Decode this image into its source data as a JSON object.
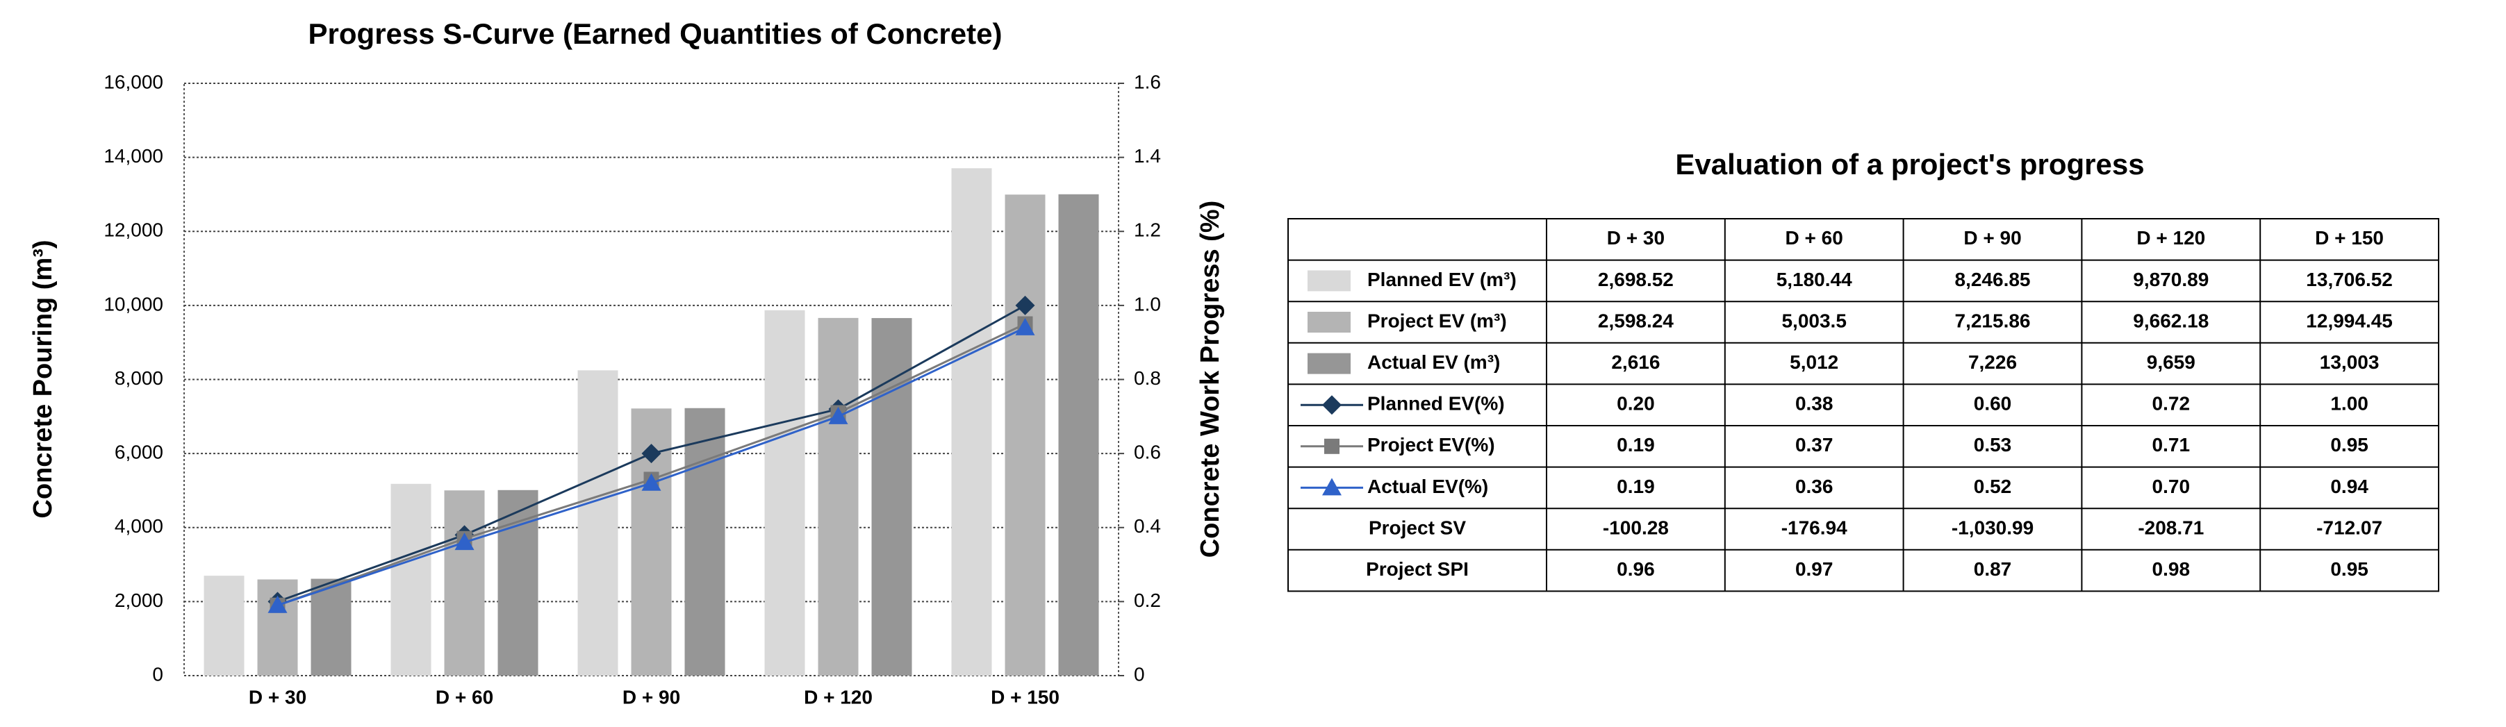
{
  "chart_data": {
    "type": "bar_line",
    "title": "Progress S-Curve (Earned Quantities of Concrete)",
    "y_label": "Concrete Pouring (m³)",
    "y2_label": "Concrete Work Progress  (%)",
    "categories": [
      "D + 30",
      "D + 60",
      "D + 90",
      "D + 120",
      "D + 150"
    ],
    "ylim": [
      0,
      16000
    ],
    "yticks": [
      0,
      {
        "value": 2000,
        "label": "2,000"
      },
      {
        "value": 4000,
        "label": "4,000"
      },
      {
        "value": 6000,
        "label": "6,000"
      },
      {
        "value": 8000,
        "label": "8,000"
      },
      {
        "value": 10000,
        "label": "10,000"
      },
      {
        "value": 12000,
        "label": "12,000"
      },
      {
        "value": 14000,
        "label": "14,000"
      },
      {
        "value": 16000,
        "label": "16,000"
      }
    ],
    "y2lim": [
      0,
      1.6
    ],
    "y2ticks": [
      0,
      0.2,
      0.4,
      0.6,
      0.8,
      {
        "value": 1,
        "label": "1.0"
      },
      1.2,
      1.4,
      1.6
    ],
    "grid": true,
    "series": [
      {
        "name": "Planned EV (m³)",
        "type": "bar",
        "color": "#d9d9d9",
        "values": [
          2698.52,
          5180.44,
          8246.85,
          9870.89,
          13706.52
        ]
      },
      {
        "name": "Project EV (m³)",
        "type": "bar",
        "color": "#b4b4b4",
        "values": [
          2598.24,
          5003.5,
          7215.86,
          9662.18,
          12994.45
        ]
      },
      {
        "name": "Actual EV (m³)",
        "type": "bar",
        "color": "#969696",
        "values": [
          2616,
          5012,
          7226,
          9659,
          13003
        ]
      },
      {
        "name": "Planned EV(%)",
        "type": "line",
        "axis": "y2",
        "marker": "diamond",
        "color": "#1b3a5c",
        "values": [
          0.2,
          0.38,
          0.6,
          0.72,
          1.0
        ]
      },
      {
        "name": "Project EV(%)",
        "type": "line",
        "axis": "y2",
        "marker": "square",
        "color": "#7a7a7a",
        "values": [
          0.19,
          0.37,
          0.53,
          0.71,
          0.95
        ]
      },
      {
        "name": "Actual EV(%)",
        "type": "line",
        "axis": "y2",
        "marker": "triangle",
        "color": "#2f62c9",
        "values": [
          0.19,
          0.36,
          0.52,
          0.7,
          0.94
        ]
      }
    ]
  },
  "table": {
    "title": "Evaluation of a project's progress",
    "series_cells": [
      [
        "2,698.52",
        "5,180.44",
        "8,246.85",
        "9,870.89",
        "13,706.52"
      ],
      [
        "2,598.24",
        "5,003.5",
        "7,215.86",
        "9,662.18",
        "12,994.45"
      ],
      [
        "2,616",
        "5,012",
        "7,226",
        "9,659",
        "13,003"
      ],
      [
        "0.20",
        "0.38",
        "0.60",
        "0.72",
        "1.00"
      ],
      [
        "0.19",
        "0.37",
        "0.53",
        "0.71",
        "0.95"
      ],
      [
        "0.19",
        "0.36",
        "0.52",
        "0.70",
        "0.94"
      ]
    ],
    "rows": [
      {
        "label": "Project SV",
        "cells": [
          "-100.28",
          "-176.94",
          "-1,030.99",
          "-208.71",
          "-712.07"
        ]
      },
      {
        "label": "Project SPI",
        "cells": [
          "0.96",
          "0.97",
          "0.87",
          "0.98",
          "0.95"
        ]
      }
    ]
  }
}
